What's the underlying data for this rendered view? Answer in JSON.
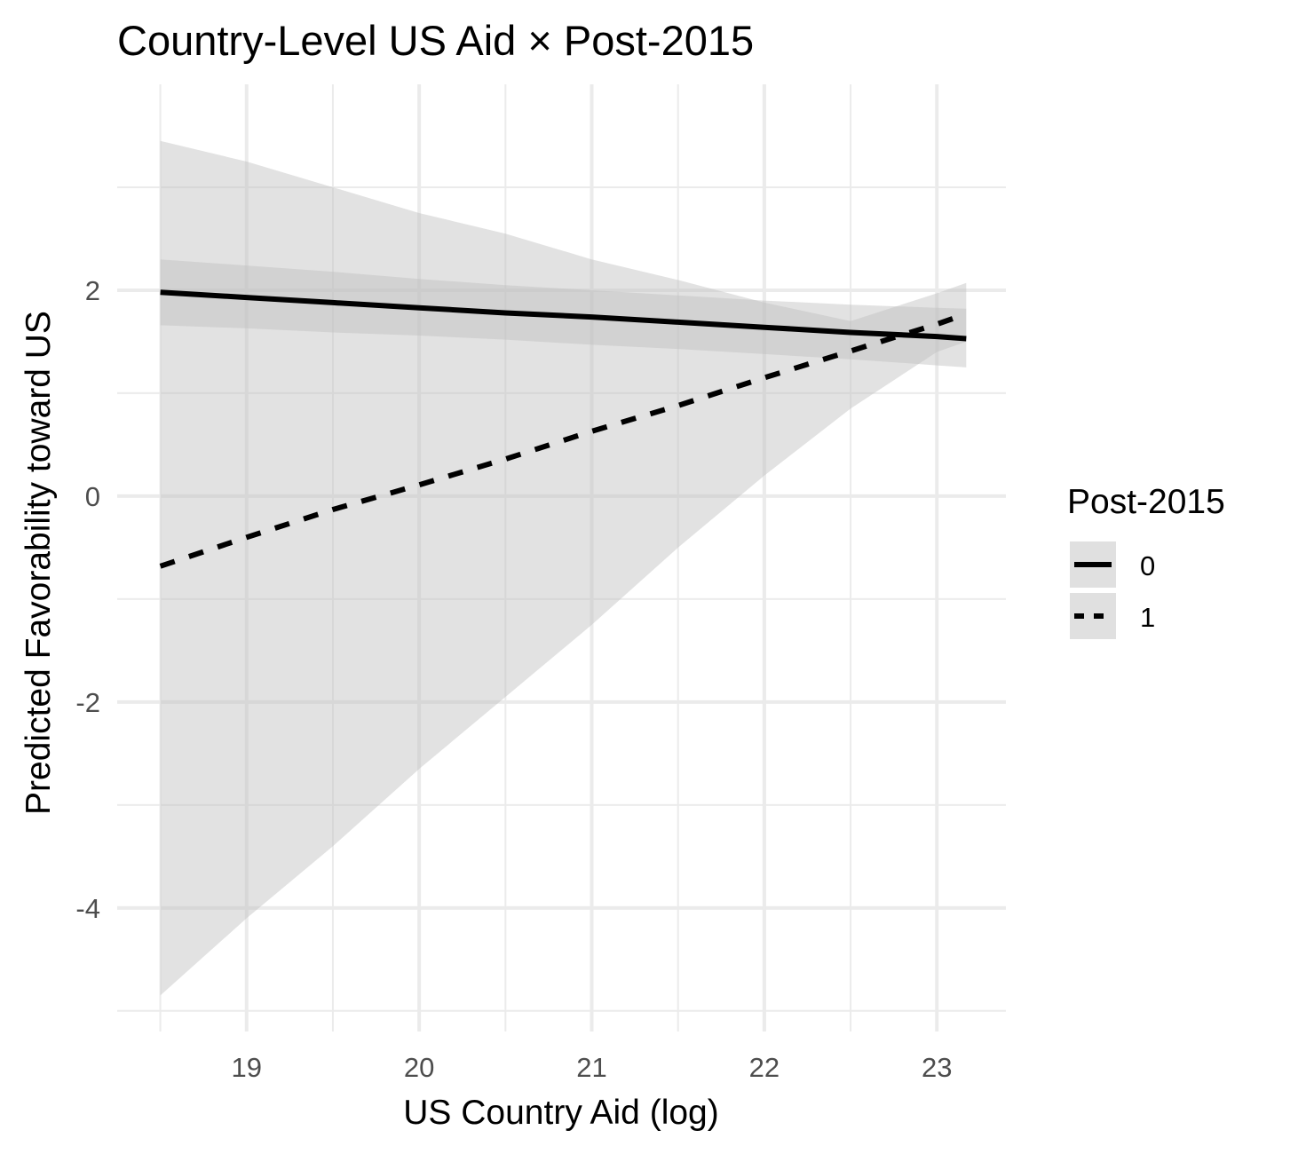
{
  "chart_data": {
    "type": "line",
    "title": "Country-Level US Aid × Post-2015",
    "xlabel": "US Country Aid (log)",
    "ylabel": "Predicted Favorability toward US",
    "xlim": [
      18.25,
      23.4
    ],
    "ylim": [
      -5.2,
      4.0
    ],
    "x_ticks": [
      19,
      20,
      21,
      22,
      23
    ],
    "y_ticks": [
      -4,
      -2,
      0,
      2
    ],
    "x_tick_labels": [
      "19",
      "20",
      "21",
      "22",
      "23"
    ],
    "y_tick_labels": [
      "-4",
      "-2",
      "0",
      "2"
    ],
    "grid": true,
    "legend": {
      "title": "Post-2015",
      "position": "right",
      "entries": [
        "0",
        "1"
      ]
    },
    "series": [
      {
        "name": "0",
        "line_style": "solid",
        "x": [
          18.5,
          19.0,
          19.5,
          20.0,
          20.5,
          21.0,
          21.5,
          22.0,
          22.5,
          23.0,
          23.17
        ],
        "y": [
          1.98,
          1.93,
          1.88,
          1.83,
          1.78,
          1.74,
          1.69,
          1.64,
          1.59,
          1.55,
          1.53
        ],
        "ci_lower": [
          1.66,
          1.63,
          1.59,
          1.56,
          1.52,
          1.47,
          1.43,
          1.38,
          1.33,
          1.27,
          1.25
        ],
        "ci_upper": [
          2.3,
          2.24,
          2.18,
          2.11,
          2.05,
          2.0,
          1.95,
          1.9,
          1.86,
          1.83,
          1.82
        ]
      },
      {
        "name": "1",
        "line_style": "dashed",
        "x": [
          18.5,
          19.0,
          19.5,
          20.0,
          20.5,
          21.0,
          21.5,
          22.0,
          22.5,
          23.0,
          23.17
        ],
        "y": [
          -0.68,
          -0.4,
          -0.13,
          0.11,
          0.36,
          0.63,
          0.88,
          1.15,
          1.41,
          1.67,
          1.77
        ],
        "ci_lower": [
          -4.85,
          -4.1,
          -3.4,
          -2.65,
          -1.95,
          -1.25,
          -0.5,
          0.2,
          0.85,
          1.4,
          1.5
        ],
        "ci_upper": [
          3.45,
          3.25,
          3.0,
          2.75,
          2.55,
          2.3,
          2.1,
          1.88,
          1.7,
          1.97,
          2.07
        ]
      }
    ],
    "colors": {
      "line": "#000000",
      "ribbon": "#bebebe",
      "grid": "#ebebeb",
      "legend_key_bg": "#e0e0e0"
    }
  }
}
